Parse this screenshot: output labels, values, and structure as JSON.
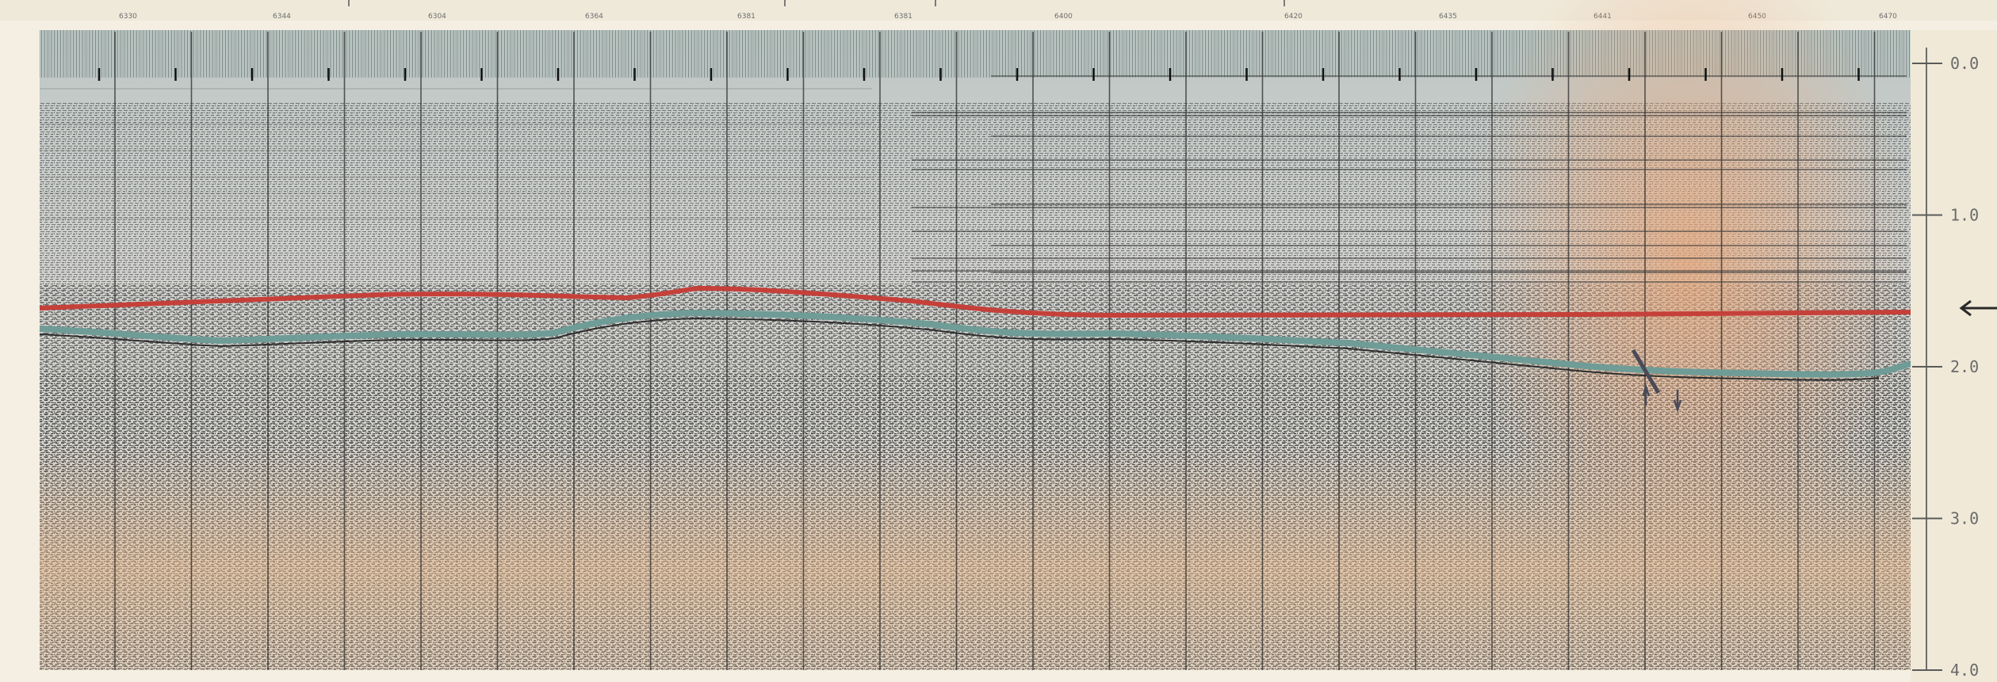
{
  "time_scale": {
    "ticks": [
      {
        "label": "0.0",
        "value": 0.0
      },
      {
        "label": "1.0",
        "value": 1.0
      },
      {
        "label": "2.0",
        "value": 2.0
      },
      {
        "label": "3.0",
        "value": 3.0
      },
      {
        "label": "4.0",
        "value": 4.0
      }
    ]
  },
  "shotpoints": {
    "labels": [
      "6330",
      "6344",
      "6304",
      "6364",
      "6381",
      "6381",
      "6400",
      "",
      "6420",
      "6435",
      "6441",
      "6450",
      "6470"
    ]
  },
  "horizons": [
    {
      "color": "#c6403a"
    },
    {
      "color": "#6f9c96"
    }
  ],
  "fault": {
    "color": "#4a4a58"
  },
  "colors": {
    "paper": "#f4efe2",
    "header": "#cfdcd8",
    "stain": "#e9b888",
    "ink": "#2a2a2a"
  }
}
